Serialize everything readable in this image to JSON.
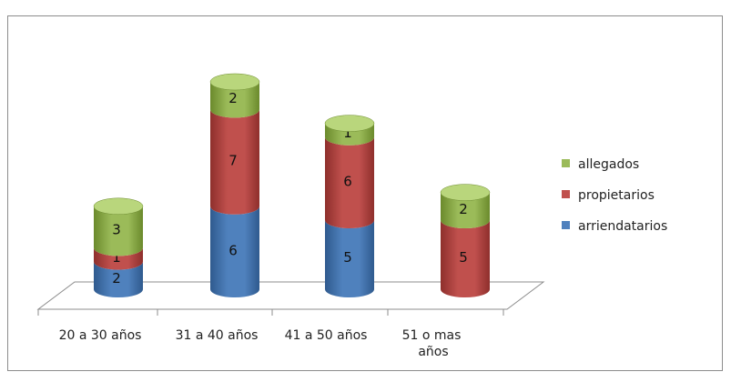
{
  "chart_data": {
    "type": "bar",
    "stacked": true,
    "style": "3d-cylinder",
    "categories": [
      "20 a 30 años",
      "31 a 40 años",
      "41 a 50 años",
      "51 o mas años"
    ],
    "category_lines": [
      [
        "20 a 30 años"
      ],
      [
        "31 a 40 años"
      ],
      [
        "41 a 50 años"
      ],
      [
        "51 o mas",
        "años"
      ]
    ],
    "series": [
      {
        "name": "arriendatarios",
        "values": [
          2,
          6,
          5,
          0
        ],
        "color": "#4f81bd",
        "dark": "#2f5a8e",
        "top": "#6f9fd8"
      },
      {
        "name": "propietarios",
        "values": [
          1,
          7,
          6,
          5
        ],
        "color": "#c0504d",
        "dark": "#8e2f2c",
        "top": "#d97674"
      },
      {
        "name": "allegados",
        "values": [
          3,
          2,
          1,
          2
        ],
        "color": "#9bbb59",
        "dark": "#6b8a2c",
        "top": "#b9d67c"
      }
    ],
    "legend_position": "right",
    "legend_order": [
      "allegados",
      "propietarios",
      "arriendatarios"
    ],
    "grid": false
  }
}
